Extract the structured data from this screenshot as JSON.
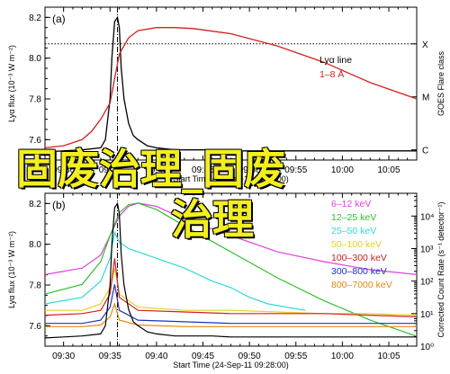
{
  "chart_data": [
    {
      "type": "line",
      "panel_label": "(a)",
      "title": "",
      "xlabel": "Start Time (24-Sep-11 09:28:00)",
      "ylabel": "Lyα flux (10⁻³ W m⁻²)",
      "right_axis_label": "GOES Flare class",
      "x_ticks": [
        "09:30",
        "09:35",
        "09:40",
        "09:45",
        "09:50",
        "09:55",
        "10:00",
        "10:05"
      ],
      "xlim_minutes": [
        0,
        40
      ],
      "y_ticks": [
        "7.6",
        "7.8",
        "8.0",
        "8.2"
      ],
      "ylim": [
        7.5,
        8.25
      ],
      "right_ticks": [
        "C",
        "M",
        "X"
      ],
      "reference_line": {
        "label": "X",
        "y": 8.07
      },
      "legend": [
        {
          "name": "Lyα line",
          "color": "#000000"
        },
        {
          "name": "1–8 Å",
          "color": "#d22020"
        }
      ],
      "series": [
        {
          "name": "Lyα line",
          "color": "#000000",
          "x": [
            0,
            2,
            4,
            6,
            6.5,
            7,
            7.2,
            7.5,
            7.8,
            8.0,
            8.2,
            8.5,
            9,
            9.5,
            10,
            11,
            12,
            14,
            16,
            18,
            20,
            25,
            30,
            35,
            40
          ],
          "y": [
            7.54,
            7.545,
            7.55,
            7.56,
            7.6,
            7.8,
            8.0,
            8.18,
            8.2,
            8.15,
            7.95,
            7.8,
            7.68,
            7.62,
            7.6,
            7.57,
            7.56,
            7.55,
            7.55,
            7.55,
            7.545,
            7.545,
            7.545,
            7.545,
            7.545
          ]
        },
        {
          "name": "1–8 Å",
          "color": "#d22020",
          "x": [
            0,
            2,
            4,
            5,
            6,
            7,
            7.5,
            8,
            9,
            10,
            12,
            14,
            16,
            20,
            25,
            30,
            35,
            40
          ],
          "y": [
            7.56,
            7.57,
            7.6,
            7.64,
            7.7,
            7.78,
            7.9,
            8.02,
            8.1,
            8.135,
            8.15,
            8.15,
            8.145,
            8.12,
            8.06,
            7.98,
            7.88,
            7.8
          ]
        }
      ]
    },
    {
      "type": "line",
      "panel_label": "(b)",
      "title": "",
      "xlabel": "Start Time (24-Sep-11 09:28:00)",
      "ylabel": "Lyα flux (10⁻³ W m⁻²)",
      "right_axis_label": "Corrected Count Rate (s⁻¹ detector⁻¹)",
      "x_ticks": [
        "09:30",
        "09:35",
        "09:40",
        "09:45",
        "09:50",
        "09:55",
        "10:00",
        "10:05"
      ],
      "xlim_minutes": [
        0,
        40
      ],
      "y_ticks": [
        "7.6",
        "7.8",
        "8.0",
        "8.2"
      ],
      "ylim": [
        7.5,
        8.25
      ],
      "right_ticks": [
        "10⁰",
        "10¹",
        "10²",
        "10³",
        "10⁴"
      ],
      "right_ylim_log10": [
        0,
        4.7
      ],
      "legend": [
        {
          "name": "6–12 keV",
          "color": "#e040e0"
        },
        {
          "name": "12–25 keV",
          "color": "#30c030"
        },
        {
          "name": "25–50 keV",
          "color": "#30d8d8"
        },
        {
          "name": "50–100 keV",
          "color": "#e8d020"
        },
        {
          "name": "100–300 keV",
          "color": "#d02020"
        },
        {
          "name": "300–800 keV",
          "color": "#2030c0"
        },
        {
          "name": "800–7000 keV",
          "color": "#e08a10"
        }
      ],
      "series": [
        {
          "name": "6–12 keV",
          "color": "#e040e0",
          "x": [
            0,
            4,
            6,
            7,
            8,
            9,
            10,
            12,
            15,
            20,
            25,
            30,
            35,
            40
          ],
          "y_log10": [
            2.2,
            2.4,
            2.8,
            3.4,
            4.0,
            4.3,
            4.4,
            4.3,
            3.9,
            3.4,
            2.9,
            2.6,
            2.35,
            2.2
          ]
        },
        {
          "name": "12–25 keV",
          "color": "#30c030",
          "x": [
            0,
            4,
            6,
            7,
            8,
            9,
            10,
            12,
            15,
            20,
            25,
            30,
            35,
            40
          ],
          "y_log10": [
            1.6,
            1.9,
            2.6,
            3.4,
            4.1,
            4.35,
            4.4,
            4.2,
            3.7,
            2.9,
            2.1,
            1.4,
            0.8,
            0.3
          ]
        },
        {
          "name": "25–50 keV",
          "color": "#30d8d8",
          "x": [
            0,
            4,
            6,
            7,
            7.5,
            8,
            9,
            10,
            12,
            15,
            18,
            20,
            22,
            24,
            26,
            28
          ],
          "y_log10": [
            1.3,
            1.5,
            2.0,
            2.7,
            3.5,
            3.2,
            3.0,
            2.9,
            2.7,
            2.4,
            2.0,
            1.8,
            1.5,
            1.3,
            1.2,
            1.1
          ]
        },
        {
          "name": "50–100 keV",
          "color": "#e8d020",
          "x": [
            0,
            4,
            6,
            7,
            7.5,
            8,
            10,
            15,
            20,
            25,
            30,
            35,
            40
          ],
          "y_log10": [
            1.1,
            1.1,
            1.3,
            1.8,
            2.4,
            1.6,
            1.2,
            1.1,
            1.1,
            1.05,
            1.0,
            1.0,
            0.95
          ]
        },
        {
          "name": "100–300 keV",
          "color": "#d02020",
          "x": [
            0,
            4,
            6,
            7,
            7.5,
            8,
            10,
            15,
            20,
            25,
            30,
            35,
            40
          ],
          "y_log10": [
            0.95,
            1.0,
            1.1,
            1.6,
            2.7,
            1.5,
            1.1,
            1.05,
            1.0,
            1.0,
            1.0,
            0.95,
            0.9
          ]
        },
        {
          "name": "300–800 keV",
          "color": "#2030c0",
          "x": [
            0,
            4,
            6,
            7,
            7.5,
            8,
            10,
            15,
            20,
            25,
            30,
            35,
            40
          ],
          "y_log10": [
            0.7,
            0.7,
            0.8,
            1.2,
            1.9,
            1.1,
            0.8,
            0.75,
            0.7,
            0.7,
            0.7,
            0.7,
            0.7
          ]
        },
        {
          "name": "800–7000 keV",
          "color": "#e08a10",
          "x": [
            0,
            4,
            6,
            7,
            7.5,
            8,
            10,
            15,
            20,
            25,
            30,
            35,
            40
          ],
          "y_log10": [
            0.6,
            0.6,
            0.65,
            0.9,
            1.3,
            0.8,
            0.65,
            0.6,
            0.6,
            0.6,
            0.6,
            0.6,
            0.6
          ]
        },
        {
          "name": "Lyα line",
          "color": "#000000",
          "axis": "left",
          "x": [
            0,
            2,
            4,
            6,
            6.5,
            7,
            7.2,
            7.5,
            7.8,
            8.0,
            8.2,
            8.5,
            9,
            9.5,
            10,
            11,
            12,
            14,
            16,
            18,
            20,
            25,
            30,
            35,
            40
          ],
          "y": [
            7.54,
            7.545,
            7.55,
            7.56,
            7.6,
            7.8,
            8.0,
            8.18,
            8.2,
            8.15,
            7.95,
            7.8,
            7.68,
            7.62,
            7.6,
            7.57,
            7.56,
            7.55,
            7.55,
            7.55,
            7.545,
            7.545,
            7.545,
            7.545,
            7.545
          ]
        }
      ]
    }
  ],
  "overlay": {
    "line1": "固废治理_固废",
    "line2": "治理"
  }
}
